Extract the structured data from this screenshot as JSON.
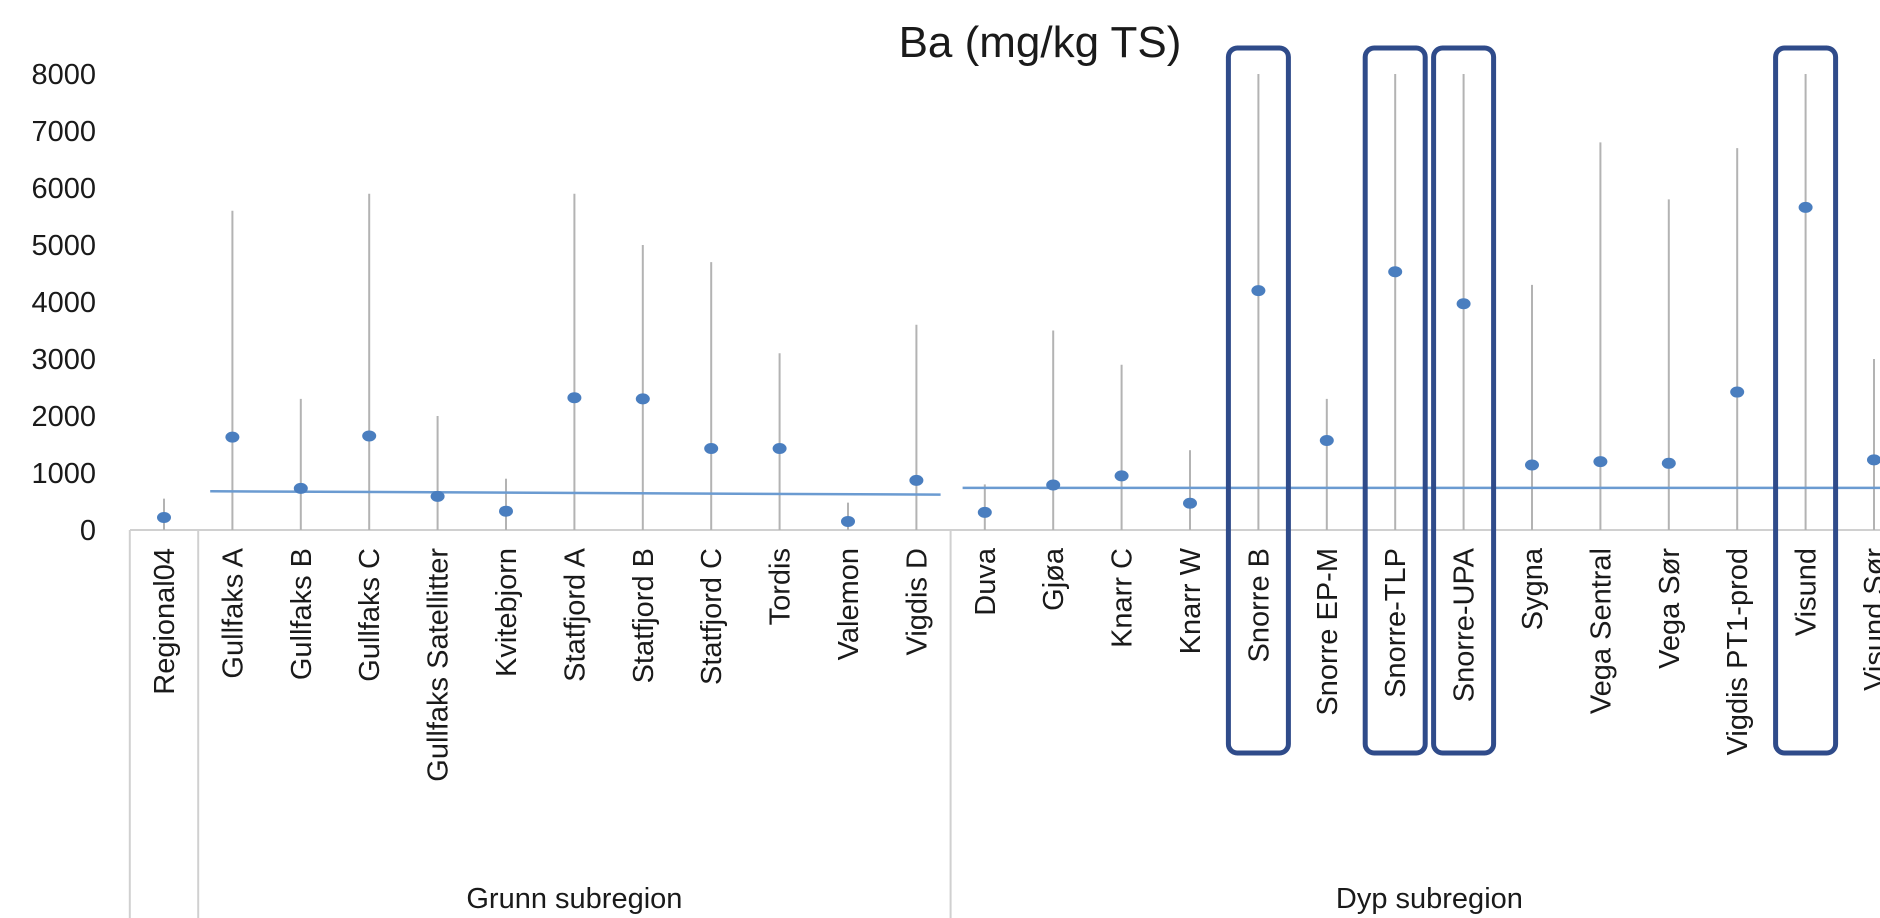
{
  "chart_data": {
    "type": "scatter",
    "title": "Ba (mg/kg TS)",
    "xlabel": "",
    "ylabel": "",
    "ylim": [
      0,
      8000
    ],
    "yticks": [
      0,
      1000,
      2000,
      3000,
      4000,
      5000,
      6000,
      7000,
      8000
    ],
    "grid": false,
    "categories": [
      "Regional04",
      "Gullfaks A",
      "Gullfaks B",
      "Gullfaks C",
      "Gullfaks Satellitter",
      "Kvitebjorn",
      "Statfjord A",
      "Statfjord B",
      "Statfjord C",
      "Tordis",
      "Valemon",
      "Vigdis D",
      "Duva",
      "Gjøa",
      "Knarr C",
      "Knarr W",
      "Snorre B",
      "Snorre EP-M",
      "Snorre-TLP",
      "Snorre-UPA",
      "Sygna",
      "Vega Sentral",
      "Vega Sør",
      "Vigdis PT1-prod",
      "Visund",
      "Visund Sør"
    ],
    "groups": [
      {
        "label": "",
        "categories": [
          "Regional04"
        ]
      },
      {
        "label": "Grunn subregion",
        "categories": [
          "Gullfaks A",
          "Gullfaks B",
          "Gullfaks C",
          "Gullfaks Satellitter",
          "Kvitebjorn",
          "Statfjord A",
          "Statfjord B",
          "Statfjord C",
          "Tordis",
          "Valemon",
          "Vigdis D"
        ]
      },
      {
        "label": "Dyp subregion",
        "categories": [
          "Duva",
          "Gjøa",
          "Knarr C",
          "Knarr W",
          "Snorre B",
          "Snorre EP-M",
          "Snorre-TLP",
          "Snorre-UPA",
          "Sygna",
          "Vega Sentral",
          "Vega Sør",
          "Vigdis PT1-prod",
          "Visund",
          "Visund Sør"
        ]
      }
    ],
    "series": [
      {
        "values": [
          220,
          1630,
          730,
          1650,
          590,
          330,
          2320,
          2300,
          1430,
          1430,
          150,
          870,
          310,
          790,
          950,
          470,
          4200,
          1570,
          4530,
          3970,
          1140,
          1200,
          1170,
          2420,
          5660,
          1230
        ],
        "color": "#4a7ebf"
      }
    ],
    "ranges_max": [
      550,
      5600,
      2300,
      5900,
      2000,
      900,
      5900,
      5000,
      4700,
      3100,
      480,
      3600,
      800,
      3500,
      2900,
      1400,
      8000,
      2300,
      8000,
      8000,
      4300,
      6800,
      5800,
      6700,
      8000,
      3000
    ],
    "range_color": "#b3b3b3",
    "reference_lines": [
      {
        "group": "Grunn subregion",
        "start": 680,
        "end": 620
      },
      {
        "group": "Dyp subregion",
        "start": 740,
        "end": 740
      }
    ],
    "reference_color": "#6b9bd1",
    "highlighted": [
      "Snorre B",
      "Snorre-TLP",
      "Snorre-UPA",
      "Visund"
    ],
    "highlight_color": "#2f4b8a"
  }
}
